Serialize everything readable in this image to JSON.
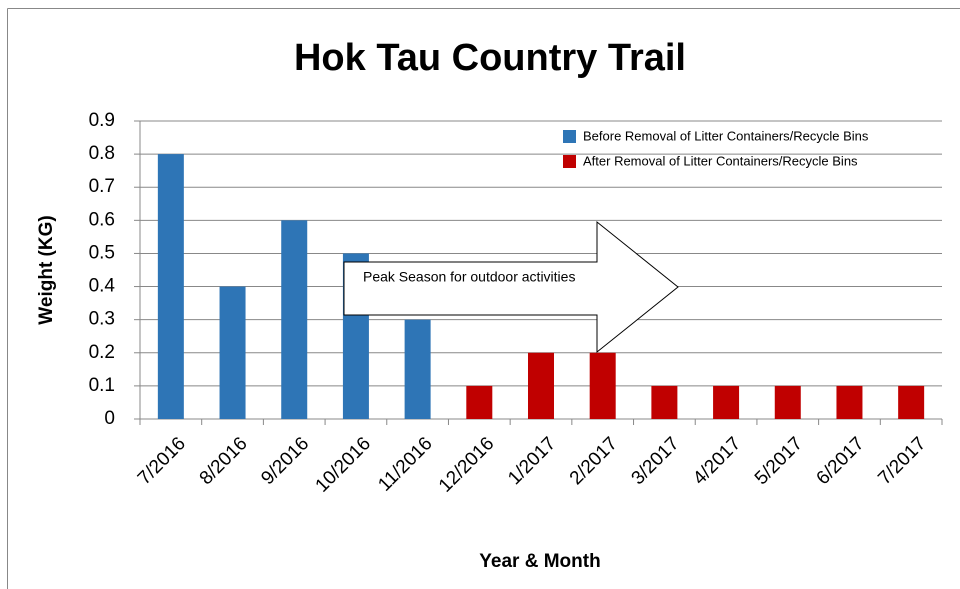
{
  "chart_data": {
    "type": "bar",
    "title": "Hok Tau Country Trail",
    "x_label": "Year & Month",
    "y_label": "Weight (KG)",
    "annotation": "Peak Season for outdoor activities",
    "categories": [
      "7/2016",
      "8/2016",
      "9/2016",
      "10/2016",
      "11/2016",
      "12/2016",
      "1/2017",
      "2/2017",
      "3/2017",
      "4/2017",
      "5/2017",
      "6/2017",
      "7/2017"
    ],
    "series": [
      {
        "name": "Before Removal of Litter Containers/Recycle Bins",
        "color": "#2e75b6",
        "values": [
          0.8,
          0.4,
          0.6,
          0.5,
          0.3,
          null,
          null,
          null,
          null,
          null,
          null,
          null,
          null
        ]
      },
      {
        "name": "After Removal of Litter Containers/Recycle Bins",
        "color": "#c00000",
        "values": [
          null,
          null,
          null,
          null,
          null,
          0.1,
          0.2,
          0.2,
          0.1,
          0.1,
          0.1,
          0.1,
          0.1
        ]
      }
    ],
    "ylim": [
      0,
      0.9
    ],
    "yticks": [
      0,
      0.1,
      0.2,
      0.3,
      0.4,
      0.5,
      0.6,
      0.7,
      0.8,
      0.9
    ],
    "grid": true,
    "legend": "top-right"
  }
}
